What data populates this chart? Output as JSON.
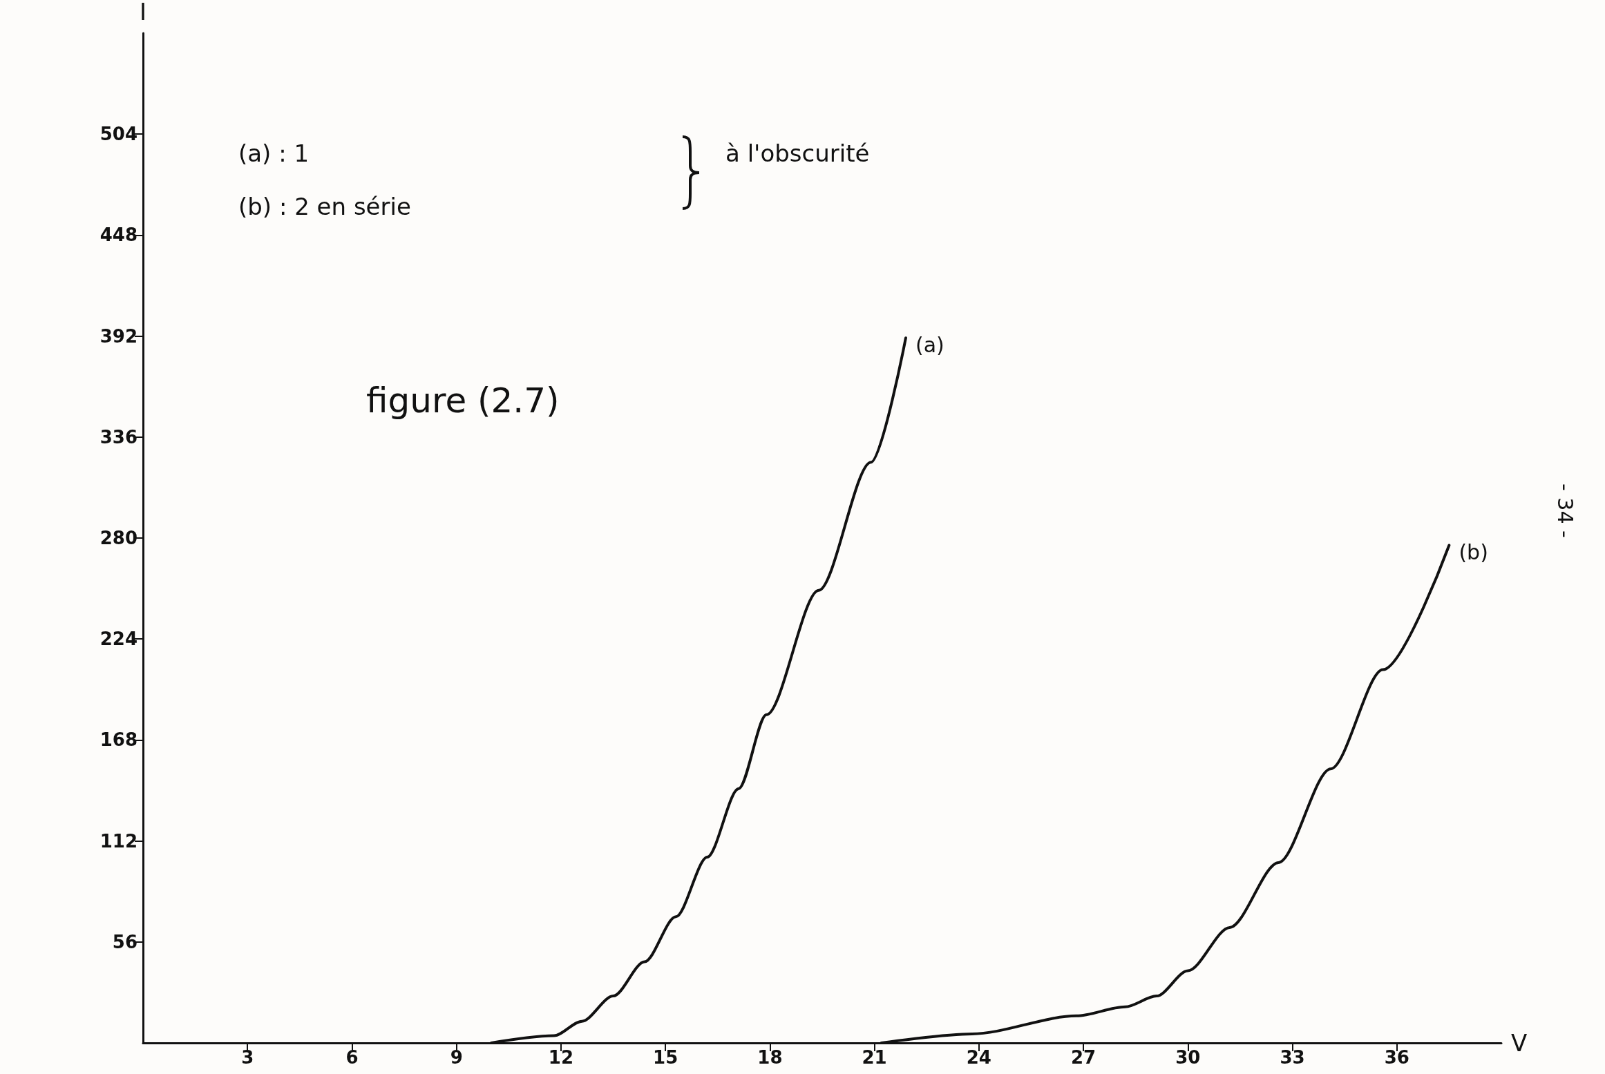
{
  "chart_data": {
    "type": "line",
    "title": "figure (2.7)",
    "xlabel": "V",
    "ylabel": "I",
    "xlim": [
      0,
      39
    ],
    "ylim": [
      0,
      560
    ],
    "xticks": [
      3,
      6,
      9,
      12,
      15,
      18,
      21,
      24,
      27,
      30,
      33,
      36
    ],
    "yticks": [
      56,
      112,
      168,
      224,
      280,
      336,
      392,
      448,
      504
    ],
    "grid": false,
    "legend": false,
    "marker": "none",
    "line_style": "solid",
    "annotations": [
      "(a) : 1",
      "(b) : 2 en série",
      "à l'obscurité",
      "- 34 -"
    ],
    "series": [
      {
        "name": "(a)",
        "color": "#111111",
        "x": [
          10,
          11.8,
          12.6,
          13.5,
          14.4,
          15.3,
          16.2,
          17.1,
          17.9,
          19.4,
          20.9,
          21.9
        ],
        "values": [
          0,
          4,
          12,
          26,
          45,
          70,
          103,
          141,
          182,
          251,
          322,
          391
        ]
      },
      {
        "name": "(b)",
        "color": "#111111",
        "x": [
          21.2,
          23.8,
          26.8,
          28.2,
          29.1,
          30,
          31.2,
          32.6,
          34.1,
          35.6,
          37.5
        ],
        "values": [
          0,
          5,
          15,
          20,
          26,
          40,
          64,
          100,
          152,
          207,
          276
        ]
      }
    ]
  }
}
